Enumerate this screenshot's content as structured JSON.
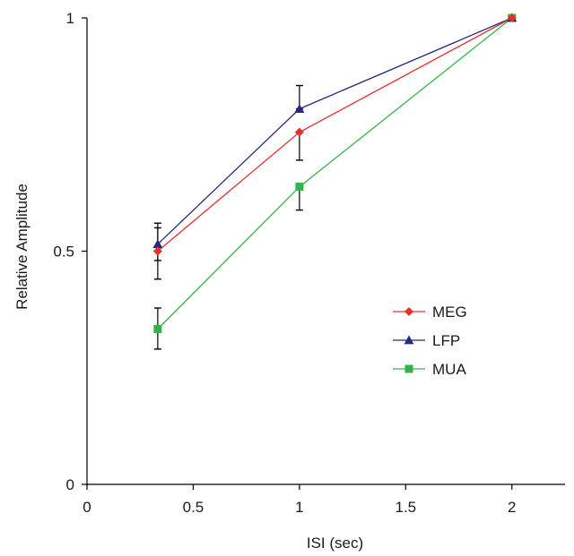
{
  "chart_data": {
    "type": "line",
    "xlabel": "ISI (sec)",
    "ylabel": "Relative Amplitude",
    "xlim": [
      0,
      2.25
    ],
    "ylim": [
      0,
      1
    ],
    "x_ticks": [
      0,
      0.5,
      1,
      1.5,
      2
    ],
    "x_tick_labels": [
      "0",
      "0.5",
      "1",
      "1.5",
      "2"
    ],
    "y_ticks": [
      0,
      0.5,
      1
    ],
    "y_tick_labels": [
      "0",
      "0.5",
      "1"
    ],
    "grid": false,
    "legend_position": "right",
    "series": [
      {
        "name": "MEG",
        "color": "#e8302b",
        "marker": "diamond",
        "points": [
          {
            "x": 0.333,
            "y": 0.5,
            "err_low": 0.44,
            "err_high": 0.55
          },
          {
            "x": 1,
            "y": 0.755,
            "err_low": 0.695,
            "err_high": 0.755
          },
          {
            "x": 2,
            "y": 1
          }
        ]
      },
      {
        "name": "LFP",
        "color": "#242a7d",
        "marker": "triangle",
        "points": [
          {
            "x": 0.333,
            "y": 0.515,
            "err_low": 0.48,
            "err_high": 0.56
          },
          {
            "x": 1,
            "y": 0.805,
            "err_low": 0.805,
            "err_high": 0.855
          },
          {
            "x": 2,
            "y": 1
          }
        ]
      },
      {
        "name": "MUA",
        "color": "#33b44a",
        "marker": "square",
        "points": [
          {
            "x": 0.333,
            "y": 0.333,
            "err_low": 0.29,
            "err_high": 0.378
          },
          {
            "x": 1,
            "y": 0.638,
            "err_low": 0.588,
            "err_high": 0.638
          },
          {
            "x": 2,
            "y": 1
          }
        ]
      }
    ]
  }
}
